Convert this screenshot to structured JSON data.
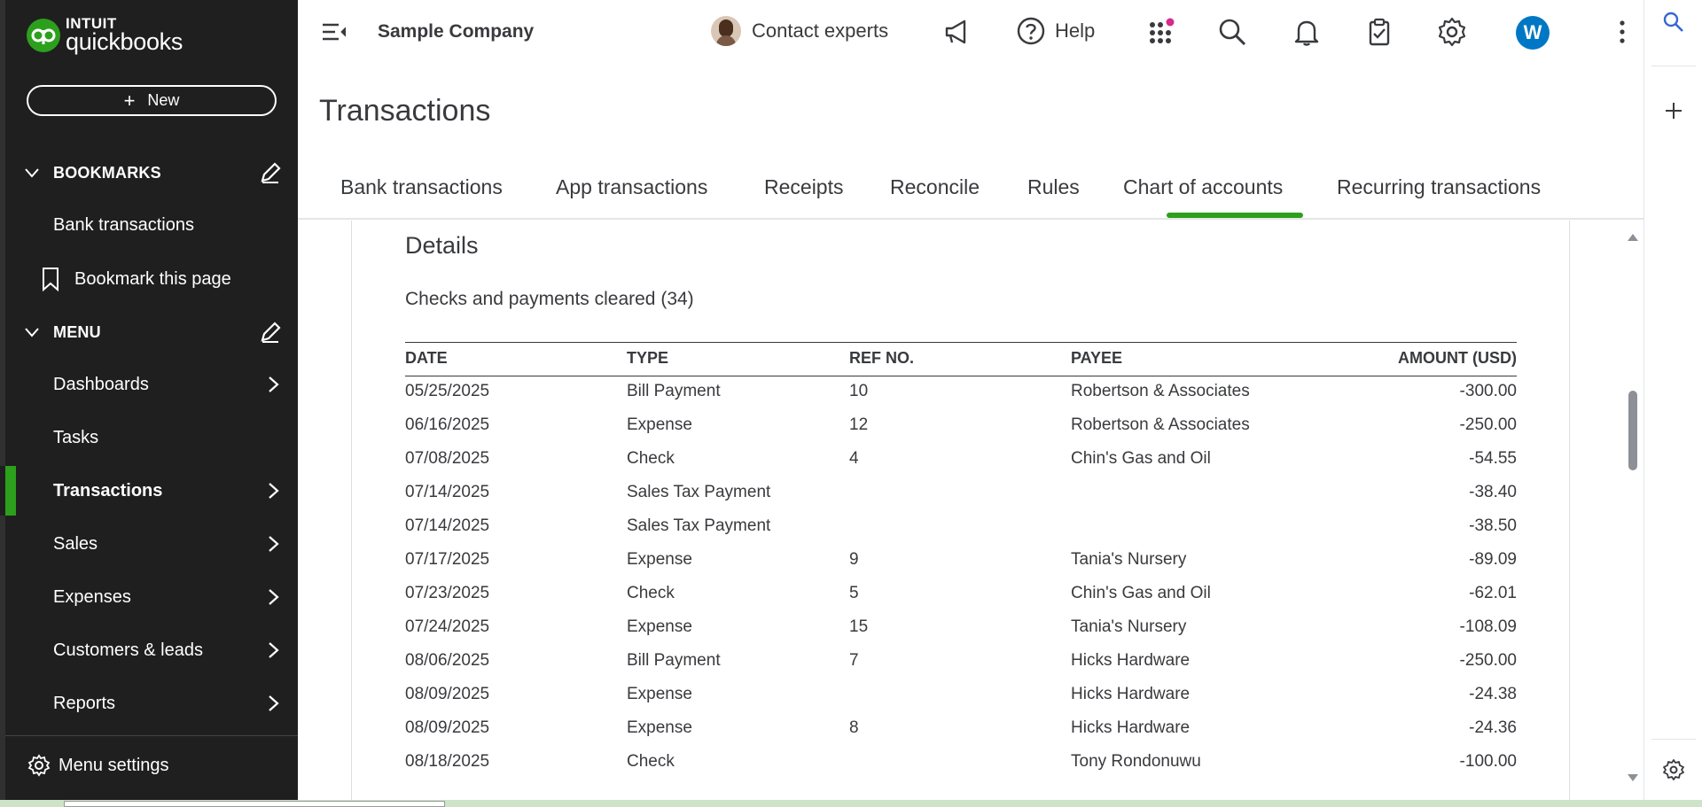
{
  "sidebar": {
    "logo_intuit": "INTUIT",
    "logo_qb": "quickbooks",
    "new_label": "New",
    "bookmarks_label": "BOOKMARKS",
    "bookmark_items": [
      "Bank transactions"
    ],
    "bookmark_this_page": "Bookmark this page",
    "menu_label": "MENU",
    "menu_items": {
      "dashboards": "Dashboards",
      "tasks": "Tasks",
      "transactions": "Transactions",
      "sales": "Sales",
      "expenses": "Expenses",
      "customers": "Customers & leads",
      "reports": "Reports"
    },
    "menu_settings": "Menu settings",
    "accent": "#2ca01c"
  },
  "header": {
    "company": "Sample Company",
    "contact_experts": "Contact experts",
    "help": "Help",
    "user_initial": "W"
  },
  "page": {
    "title": "Transactions",
    "tabs": [
      "Bank transactions",
      "App transactions",
      "Receipts",
      "Reconcile",
      "Rules",
      "Chart of accounts",
      "Recurring transactions"
    ],
    "active_tab": "Reconcile"
  },
  "details": {
    "title": "Details",
    "subtitle": "Checks and payments cleared (34)",
    "columns": [
      "DATE",
      "TYPE",
      "REF NO.",
      "PAYEE",
      "AMOUNT (USD)"
    ],
    "rows": [
      [
        "05/25/2025",
        "Bill Payment",
        "10",
        "Robertson & Associates",
        "-300.00"
      ],
      [
        "06/16/2025",
        "Expense",
        "12",
        "Robertson & Associates",
        "-250.00"
      ],
      [
        "07/08/2025",
        "Check",
        "4",
        "Chin's Gas and Oil",
        "-54.55"
      ],
      [
        "07/14/2025",
        "Sales Tax Payment",
        "",
        "",
        "-38.40"
      ],
      [
        "07/14/2025",
        "Sales Tax Payment",
        "",
        "",
        "-38.50"
      ],
      [
        "07/17/2025",
        "Expense",
        "9",
        "Tania's Nursery",
        "-89.09"
      ],
      [
        "07/23/2025",
        "Check",
        "5",
        "Chin's Gas and Oil",
        "-62.01"
      ],
      [
        "07/24/2025",
        "Expense",
        "15",
        "Tania's Nursery",
        "-108.09"
      ],
      [
        "08/06/2025",
        "Bill Payment",
        "7",
        "Hicks Hardware",
        "-250.00"
      ],
      [
        "08/09/2025",
        "Expense",
        "",
        "Hicks Hardware",
        "-24.38"
      ],
      [
        "08/09/2025",
        "Expense",
        "8",
        "Hicks Hardware",
        "-24.36"
      ],
      [
        "08/18/2025",
        "Check",
        "",
        "Tony Rondonuwu",
        "-100.00"
      ]
    ]
  }
}
